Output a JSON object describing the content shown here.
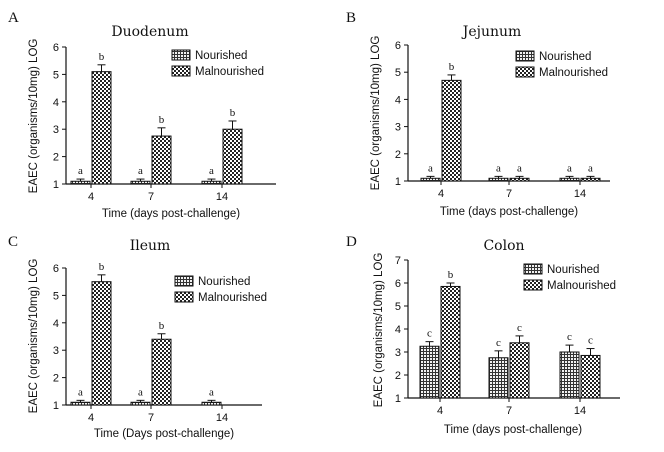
{
  "panels": [
    {
      "letter": "A"
    },
    {
      "letter": "B"
    },
    {
      "letter": "C"
    },
    {
      "letter": "D"
    }
  ],
  "chart_data": [
    {
      "type": "bar",
      "title": "Duodenum",
      "xlabel": "Time (days post-challenge)",
      "ylabel": "EAEC (organisms/10mg) LOG",
      "ylim": [
        1,
        6
      ],
      "yticks": [
        1,
        2,
        3,
        4,
        5,
        6
      ],
      "categories": [
        "4",
        "7",
        "14"
      ],
      "legend_position": "top-right",
      "series": [
        {
          "name": "Nourished",
          "pattern": "grid",
          "values": [
            1.1,
            1.1,
            1.1
          ],
          "errors": [
            0.08,
            0.08,
            0.08
          ],
          "labels": [
            "a",
            "a",
            "a"
          ]
        },
        {
          "name": "Malnourished",
          "pattern": "check",
          "values": [
            5.1,
            2.75,
            3.0
          ],
          "errors": [
            0.25,
            0.3,
            0.3
          ],
          "labels": [
            "b",
            "b",
            "b"
          ]
        }
      ]
    },
    {
      "type": "bar",
      "title": "Jejunum",
      "xlabel": "Time (days post-challenge)",
      "ylabel": "EAEC (organisms/10mg) LOG",
      "ylim": [
        1,
        6
      ],
      "yticks": [
        1,
        2,
        3,
        4,
        5,
        6
      ],
      "categories": [
        "4",
        "7",
        "14"
      ],
      "legend_position": "top-right",
      "series": [
        {
          "name": "Nourished",
          "pattern": "grid",
          "values": [
            1.1,
            1.1,
            1.1
          ],
          "errors": [
            0.07,
            0.07,
            0.07
          ],
          "labels": [
            "a",
            "a",
            "a"
          ]
        },
        {
          "name": "Malnourished",
          "pattern": "check",
          "values": [
            4.7,
            1.1,
            1.1
          ],
          "errors": [
            0.2,
            0.07,
            0.07
          ],
          "labels": [
            "b",
            "a",
            "a"
          ]
        }
      ]
    },
    {
      "type": "bar",
      "title": "Ileum",
      "xlabel": "Time (Days post-challenge)",
      "ylabel": "EAEC (organisms/10mg) LOG",
      "ylim": [
        1,
        6
      ],
      "yticks": [
        1,
        2,
        3,
        4,
        5,
        6
      ],
      "categories": [
        "4",
        "7",
        "14"
      ],
      "legend_position": "top-right",
      "series": [
        {
          "name": "Nourished",
          "pattern": "grid",
          "values": [
            1.1,
            1.1,
            1.1
          ],
          "errors": [
            0.07,
            0.07,
            0.07
          ],
          "labels": [
            "a",
            "a",
            "a"
          ]
        },
        {
          "name": "Malnourished",
          "pattern": "check",
          "values": [
            5.5,
            3.4,
            null
          ],
          "errors": [
            0.25,
            0.2,
            0
          ],
          "labels": [
            "b",
            "b",
            ""
          ]
        }
      ]
    },
    {
      "type": "bar",
      "title": "Colon",
      "xlabel": "Time (days post-challenge)",
      "ylabel": "EAEC (organisms/10mg) LOG",
      "ylim": [
        1,
        7
      ],
      "yticks": [
        1,
        2,
        3,
        4,
        5,
        6,
        7
      ],
      "categories": [
        "4",
        "7",
        "14"
      ],
      "legend_position": "top-right",
      "series": [
        {
          "name": "Nourished",
          "pattern": "grid",
          "values": [
            3.25,
            2.75,
            3.0
          ],
          "errors": [
            0.2,
            0.3,
            0.3
          ],
          "labels": [
            "c",
            "c",
            "c"
          ]
        },
        {
          "name": "Malnourished",
          "pattern": "check",
          "values": [
            5.85,
            3.4,
            2.85
          ],
          "errors": [
            0.15,
            0.3,
            0.3
          ],
          "labels": [
            "b",
            "c",
            "c"
          ]
        }
      ]
    }
  ]
}
